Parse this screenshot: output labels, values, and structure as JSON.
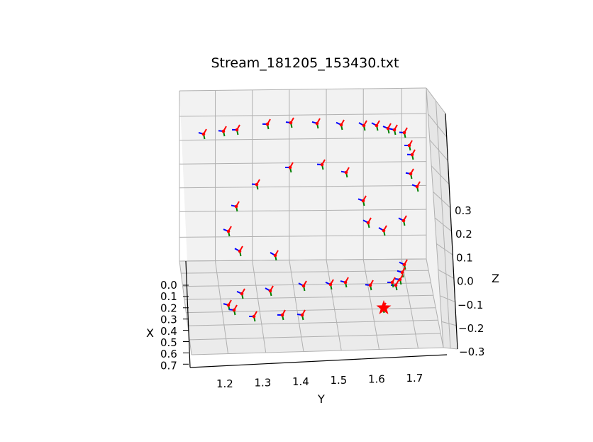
{
  "chart_data": {
    "type": "scatter",
    "title": "Stream_181205_153430.txt",
    "xlabel": "X",
    "ylabel": "Y",
    "zlabel": "Z",
    "x_ticks": [
      "0.0",
      "0.1",
      "0.2",
      "0.3",
      "0.4",
      "0.5",
      "0.6",
      "0.7"
    ],
    "y_ticks": [
      "1.2",
      "1.3",
      "1.4",
      "1.5",
      "1.6",
      "1.7"
    ],
    "z_ticks": [
      "0.3",
      "0.2",
      "0.1",
      "0.0",
      "−0.1",
      "−0.2",
      "−0.3"
    ],
    "xlim": [
      0.0,
      0.7
    ],
    "ylim": [
      1.15,
      1.75
    ],
    "zlim": [
      -0.3,
      0.3
    ],
    "grid": true,
    "frame_axis_colors": {
      "x": "#ff0000",
      "y": "#008000",
      "z": "#0000ff"
    },
    "start_marker": {
      "shape": "star",
      "color": "#ff0000"
    },
    "samples_screen": [
      [
        287,
        189
      ],
      [
        315,
        185
      ],
      [
        334,
        183
      ],
      [
        377,
        175
      ],
      [
        410,
        173
      ],
      [
        447,
        174
      ],
      [
        481,
        176
      ],
      [
        513,
        177
      ],
      [
        531,
        177
      ],
      [
        547,
        181
      ],
      [
        556,
        183
      ],
      [
        570,
        187
      ],
      [
        577,
        205
      ],
      [
        581,
        218
      ],
      [
        579,
        245
      ],
      [
        588,
        263
      ],
      [
        569,
        311
      ],
      [
        541,
        325
      ],
      [
        519,
        314
      ],
      [
        512,
        283
      ],
      [
        488,
        243
      ],
      [
        454,
        232
      ],
      [
        409,
        236
      ],
      [
        362,
        260
      ],
      [
        333,
        291
      ],
      [
        322,
        326
      ],
      [
        338,
        354
      ],
      [
        388,
        360
      ],
      [
        570,
        373
      ],
      [
        567,
        384
      ],
      [
        564,
        394
      ],
      [
        558,
        402
      ],
      [
        553,
        398
      ],
      [
        522,
        402
      ],
      [
        487,
        398
      ],
      [
        466,
        401
      ],
      [
        428,
        403
      ],
      [
        381,
        410
      ],
      [
        341,
        414
      ],
      [
        322,
        430
      ],
      [
        330,
        437
      ],
      [
        358,
        446
      ],
      [
        398,
        444
      ],
      [
        426,
        444
      ],
      [
        540,
        434
      ]
    ]
  }
}
